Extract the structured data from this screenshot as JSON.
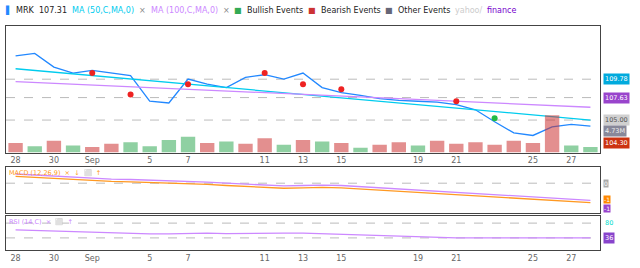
{
  "chart_data": [
    {
      "type": "line",
      "categories": [
        "28",
        null,
        "30",
        null,
        "Sep",
        null,
        null,
        "5",
        null,
        "7",
        null,
        null,
        null,
        "11",
        null,
        "13",
        null,
        "15",
        null,
        null,
        null,
        "19",
        null,
        "21",
        null,
        null,
        null,
        "25",
        null,
        "27",
        null
      ],
      "series": [
        {
          "type": "line",
          "color": "#2288ff",
          "values": [
            112.5,
            112.8,
            111.2,
            110.5,
            110.8,
            110.5,
            110.2,
            107.2,
            107.0,
            109.8,
            109.2,
            108.8,
            110.0,
            110.3,
            109.8,
            110.5,
            108.8,
            108.2,
            107.9,
            107.5,
            107.3,
            107.2,
            107.1,
            106.8,
            106.2,
            104.8,
            103.5,
            103.2,
            104.2,
            104.5,
            104.3
          ]
        },
        {
          "type": "line",
          "color": "#00ccee",
          "values": [
            111.0,
            110.8,
            110.6,
            110.4,
            110.2,
            110.0,
            109.8,
            109.6,
            109.4,
            109.2,
            109.0,
            108.8,
            108.6,
            108.4,
            108.2,
            108.0,
            107.8,
            107.6,
            107.4,
            107.2,
            107.0,
            106.8,
            106.6,
            106.4,
            106.2,
            106.0,
            105.8,
            105.6,
            105.4,
            105.2,
            105.0
          ]
        },
        {
          "type": "line",
          "color": "#cc88ff",
          "values": [
            109.5,
            109.4,
            109.3,
            109.2,
            109.1,
            109.0,
            108.9,
            108.8,
            108.7,
            108.6,
            108.5,
            108.4,
            108.3,
            108.2,
            108.1,
            108.0,
            107.9,
            107.8,
            107.7,
            107.6,
            107.5,
            107.4,
            107.3,
            107.2,
            107.1,
            107.0,
            106.9,
            106.8,
            106.7,
            106.6,
            106.5
          ]
        },
        {
          "type": "scatter",
          "marker": "circle",
          "color": "#ee2222",
          "x": [
            4,
            6,
            9,
            13,
            15,
            17,
            23
          ],
          "values": [
            110.5,
            108.0,
            109.2,
            110.5,
            109.2,
            108.6,
            107.2
          ]
        },
        {
          "type": "scatter",
          "marker": "circle",
          "color": "#22bb44",
          "x": [
            25
          ],
          "values": [
            105.2
          ]
        },
        {
          "type": "bar",
          "axis": "y2",
          "values": [
            1.2,
            0.8,
            1.5,
            0.9,
            0.7,
            1.1,
            1.3,
            0.8,
            1.6,
            2.0,
            1.2,
            1.4,
            1.1,
            1.8,
            1.0,
            1.6,
            1.4,
            1.2,
            0.6,
            1.0,
            1.3,
            0.9,
            1.5,
            1.1,
            1.3,
            1.0,
            1.5,
            1.2,
            4.73,
            0.9,
            0.7
          ],
          "colors": [
            "#cc3333",
            "#33aa55",
            "#cc3333",
            "#33aa55",
            "#cc3333",
            "#cc3333",
            "#33aa55",
            "#33aa55",
            "#33aa55",
            "#33aa55",
            "#cc3333",
            "#33aa55",
            "#cc3333",
            "#cc3333",
            "#33aa55",
            "#cc3333",
            "#33aa55",
            "#cc3333",
            "#33aa55",
            "#cc3333",
            "#cc3333",
            "#33aa55",
            "#cc3333",
            "#cc3333",
            "#cc3333",
            "#cc3333",
            "#cc3333",
            "#cc3333",
            "#cc3333",
            "#33aa55",
            "#33aa55"
          ]
        }
      ],
      "ylim": [
        101.2,
        116.0
      ],
      "yticks": [],
      "y2lim": [
        0,
        16
      ],
      "y2ticks": [],
      "hlines": [
        109.78,
        107.63,
        105.0
      ],
      "grid": false,
      "tick_labels": "x",
      "annotations": [
        {
          "text": "▌",
          "color": "#2288ff"
        },
        {
          "text": "MRK",
          "color": "#222222"
        },
        {
          "text": "107.31",
          "color": "#222222"
        },
        {
          "text": "MA (50,C,MA,0)",
          "color": "#00ccee"
        },
        {
          "text": "×",
          "color": "#888888"
        },
        {
          "text": "MA (100,C,MA,0)",
          "color": "#cc88ff"
        },
        {
          "text": "×",
          "color": "#888888"
        },
        {
          "text": "■",
          "color": "#33aa55"
        },
        {
          "text": "Bullish Events",
          "color": "#222222"
        },
        {
          "text": "■",
          "color": "#cc3333"
        },
        {
          "text": "Bearish Events",
          "color": "#222222"
        },
        {
          "text": "■",
          "color": "#666677"
        },
        {
          "text": "Other Events",
          "color": "#222222"
        },
        {
          "text": "yahoo/",
          "color": "#cccccc"
        },
        {
          "text": "finance",
          "color": "#7700cc"
        },
        {
          "text": "109.78",
          "y": 109.78,
          "color": "#ffffff",
          "bgcolor": "#00aadd"
        },
        {
          "text": "107.63",
          "y": 107.63,
          "color": "#ffffff",
          "bgcolor": "#9944cc"
        },
        {
          "text": "105.00",
          "y": 105.0,
          "color": "#555555",
          "bgcolor": "#d0d0d0"
        },
        {
          "text": "4.73M",
          "y": 103.7,
          "color": "#eeeeee",
          "bgcolor": "#888899"
        },
        {
          "text": "104.30",
          "y": 102.3,
          "color": "#ffffff",
          "bgcolor": "#cc3311"
        }
      ]
    },
    {
      "type": "line",
      "series": [
        {
          "type": "line",
          "color": "#ff9922",
          "values": [
            0.3,
            0.25,
            0.2,
            0.15,
            0.1,
            0.08,
            0.06,
            0.04,
            0.02,
            0.0,
            -0.05,
            -0.1,
            -0.15,
            -0.2,
            -0.22,
            -0.2,
            -0.18,
            -0.2,
            -0.25,
            -0.3,
            -0.35,
            -0.4,
            -0.45,
            -0.5,
            -0.55,
            -0.6,
            -0.65,
            -0.7,
            -0.75,
            -0.8,
            -0.85
          ]
        },
        {
          "type": "line",
          "color": "#cc88ff",
          "values": [
            0.4,
            0.35,
            0.3,
            0.25,
            0.2,
            0.18,
            0.16,
            0.14,
            0.12,
            0.1,
            0.05,
            0.0,
            -0.05,
            -0.1,
            -0.12,
            -0.1,
            -0.08,
            -0.1,
            -0.15,
            -0.2,
            -0.25,
            -0.3,
            -0.35,
            -0.4,
            -0.45,
            -0.5,
            -0.55,
            -0.6,
            -0.65,
            -0.7,
            -0.75
          ]
        }
      ],
      "ylim": [
        -1.3,
        0.7
      ],
      "yticks": [],
      "hlines": [
        0
      ],
      "grid": false,
      "tick_labels": false,
      "annotations": [
        {
          "text": "MACD (12,26,9)  ×  ↓  ⬜  ↑",
          "color": "#ff9922"
        },
        {
          "text": "0",
          "y": 0.0,
          "color": "#ffffff",
          "bgcolor": "#aaaaaa"
        },
        {
          "text": "-1",
          "y": -0.7,
          "color": "#ffffff",
          "bgcolor": "#ff8800"
        },
        {
          "text": "-1",
          "y": -1.1,
          "color": "#ffffff",
          "bgcolor": "#9944cc"
        }
      ]
    },
    {
      "type": "line",
      "categories": [
        "28",
        null,
        "30",
        null,
        "Sep",
        null,
        null,
        "5",
        null,
        "7",
        null,
        null,
        null,
        "11",
        null,
        "13",
        null,
        "15",
        null,
        null,
        null,
        "19",
        null,
        "21",
        null,
        null,
        null,
        "25",
        null,
        "27",
        null
      ],
      "series": [
        {
          "type": "line",
          "color": "#cc88ff",
          "values": [
            60,
            58,
            56,
            54,
            52,
            50,
            50,
            48,
            48,
            50,
            50,
            49,
            50,
            51,
            50,
            50,
            48,
            46,
            44,
            42,
            40,
            38,
            37,
            36,
            36,
            36,
            36,
            36,
            36,
            36,
            36
          ]
        }
      ],
      "ylim": [
        0,
        100
      ],
      "yticks": [],
      "hlines": [
        80,
        36
      ],
      "grid": false,
      "tick_labels": "x",
      "annotations": [
        {
          "text": "RSI (14,C)  ×  ⬜  ↑",
          "color": "#cc88ff"
        },
        {
          "text": "80",
          "y": 80,
          "color": "#00ddcc"
        },
        {
          "text": "36",
          "y": 36,
          "color": "#ffffff",
          "bgcolor": "#8844cc"
        }
      ]
    }
  ]
}
